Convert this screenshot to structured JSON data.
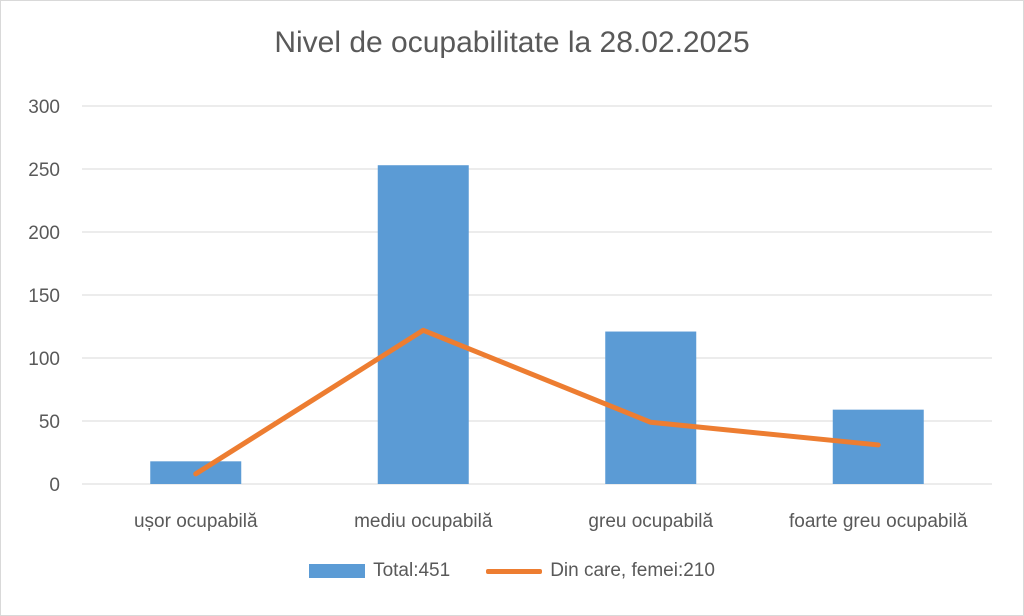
{
  "chart_data": {
    "type": "bar",
    "title": "Nivel de ocupabilitate la 28.02.2025",
    "categories": [
      "ușor ocupabilă",
      "mediu ocupabilă",
      "greu ocupabilă",
      "foarte greu ocupabilă"
    ],
    "series": [
      {
        "name": "Total:451",
        "type": "bar",
        "color": "#5B9BD5",
        "values": [
          18,
          253,
          121,
          59
        ]
      },
      {
        "name": "Din care, femei:210",
        "type": "line",
        "color": "#ED7D31",
        "values": [
          8,
          122,
          49,
          31
        ]
      }
    ],
    "ylim": [
      0,
      300
    ],
    "yticks": [
      0,
      50,
      100,
      150,
      200,
      250,
      300
    ],
    "grid": true,
    "legend_position": "bottom"
  }
}
